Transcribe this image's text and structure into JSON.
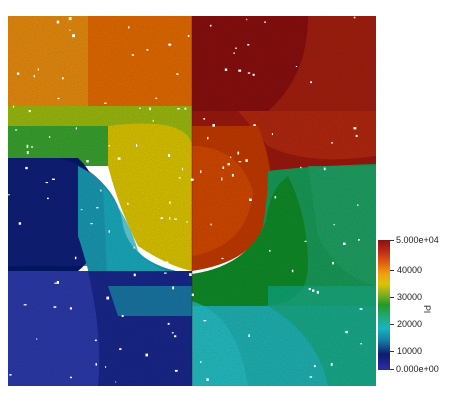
{
  "scalar_bar": {
    "title": "Pl",
    "max_label": "5.000e+04",
    "min_label": "0.000e+00",
    "tick_labels": [
      "40000",
      "30000",
      "20000",
      "10000"
    ],
    "colormap": [
      "#3b4cc0",
      "#1a2a8a",
      "#0a1a6a",
      "#0f7fa0",
      "#1ab0b8",
      "#1fa060",
      "#2a9a2a",
      "#7ab020",
      "#c8c000",
      "#f0a000",
      "#e06000",
      "#c03010",
      "#8a1010"
    ]
  },
  "field": {
    "description_colors": {
      "top_left": "#e07a10",
      "top_right": "#8a1a14",
      "middle_left": "#a8c010",
      "middle_center": "#d8c010",
      "middle_right": "#a02010",
      "lower_left": "#0c1a6a",
      "lower_center": "#1aa8b8",
      "lower_right": "#20a050",
      "bottom_left": "#2a32a0",
      "bottom_right": "#20b8b0"
    }
  }
}
